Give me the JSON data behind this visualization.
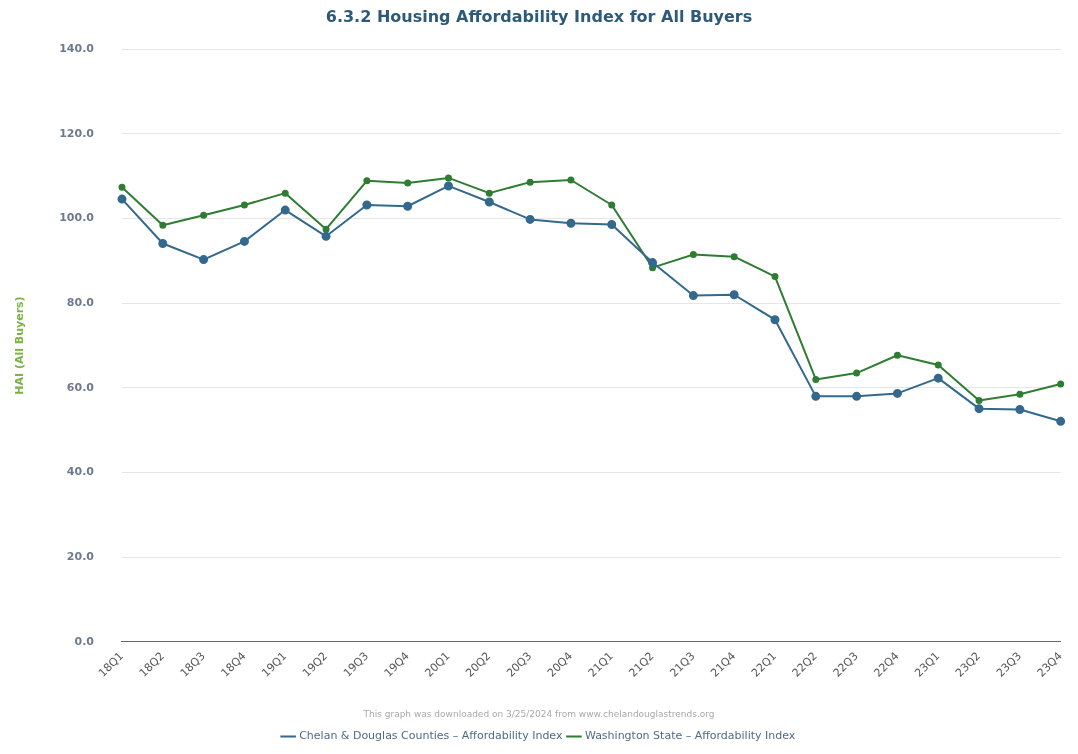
{
  "chart_data": {
    "type": "line",
    "title": "6.3.2 Housing Affordability Index for All Buyers",
    "ylabel": "HAI (All Buyers)",
    "categories": [
      "18Q1",
      "18Q2",
      "18Q3",
      "18Q4",
      "19Q1",
      "19Q2",
      "19Q3",
      "19Q4",
      "20Q1",
      "20Q2",
      "20Q3",
      "20Q4",
      "21Q1",
      "21Q2",
      "21Q3",
      "21Q4",
      "22Q1",
      "22Q2",
      "22Q3",
      "22Q4",
      "23Q1",
      "23Q2",
      "23Q3",
      "23Q4"
    ],
    "series": [
      {
        "name": "Chelan & Douglas Counties – Affordability Index",
        "color": "#33698c",
        "values": [
          104.6,
          94.1,
          90.3,
          94.6,
          102.0,
          95.8,
          103.2,
          102.9,
          107.7,
          103.9,
          99.8,
          98.9,
          98.6,
          89.6,
          81.8,
          82.0,
          76.1,
          58.0,
          58.0,
          58.7,
          62.3,
          55.1,
          54.9,
          52.1
        ]
      },
      {
        "name": "Washington State – Affordability Index",
        "color": "#2e7d32",
        "values": [
          107.4,
          98.4,
          100.8,
          103.2,
          106.0,
          97.5,
          108.9,
          108.4,
          109.6,
          106.0,
          108.6,
          109.1,
          103.2,
          88.4,
          91.5,
          91.0,
          86.3,
          62.0,
          63.5,
          67.7,
          65.4,
          57.0,
          58.5,
          60.9
        ]
      }
    ],
    "ylim": [
      0,
      140
    ],
    "yticks": [
      {
        "value": 0,
        "label": "0.0"
      },
      {
        "value": 20,
        "label": "20.0"
      },
      {
        "value": 40,
        "label": "40.0"
      },
      {
        "value": 60,
        "label": "60.0"
      },
      {
        "value": 80,
        "label": "80.0"
      },
      {
        "value": 100,
        "label": "100.0"
      },
      {
        "value": 120,
        "label": "120.0"
      },
      {
        "value": 140,
        "label": "140.0"
      }
    ],
    "grid": "y",
    "legend": "bottom",
    "marker": "circle",
    "line_style": "solid",
    "annotations": [
      "This graph was downloaded on 3/25/2024 from www.chelandouglastrends.org"
    ]
  }
}
